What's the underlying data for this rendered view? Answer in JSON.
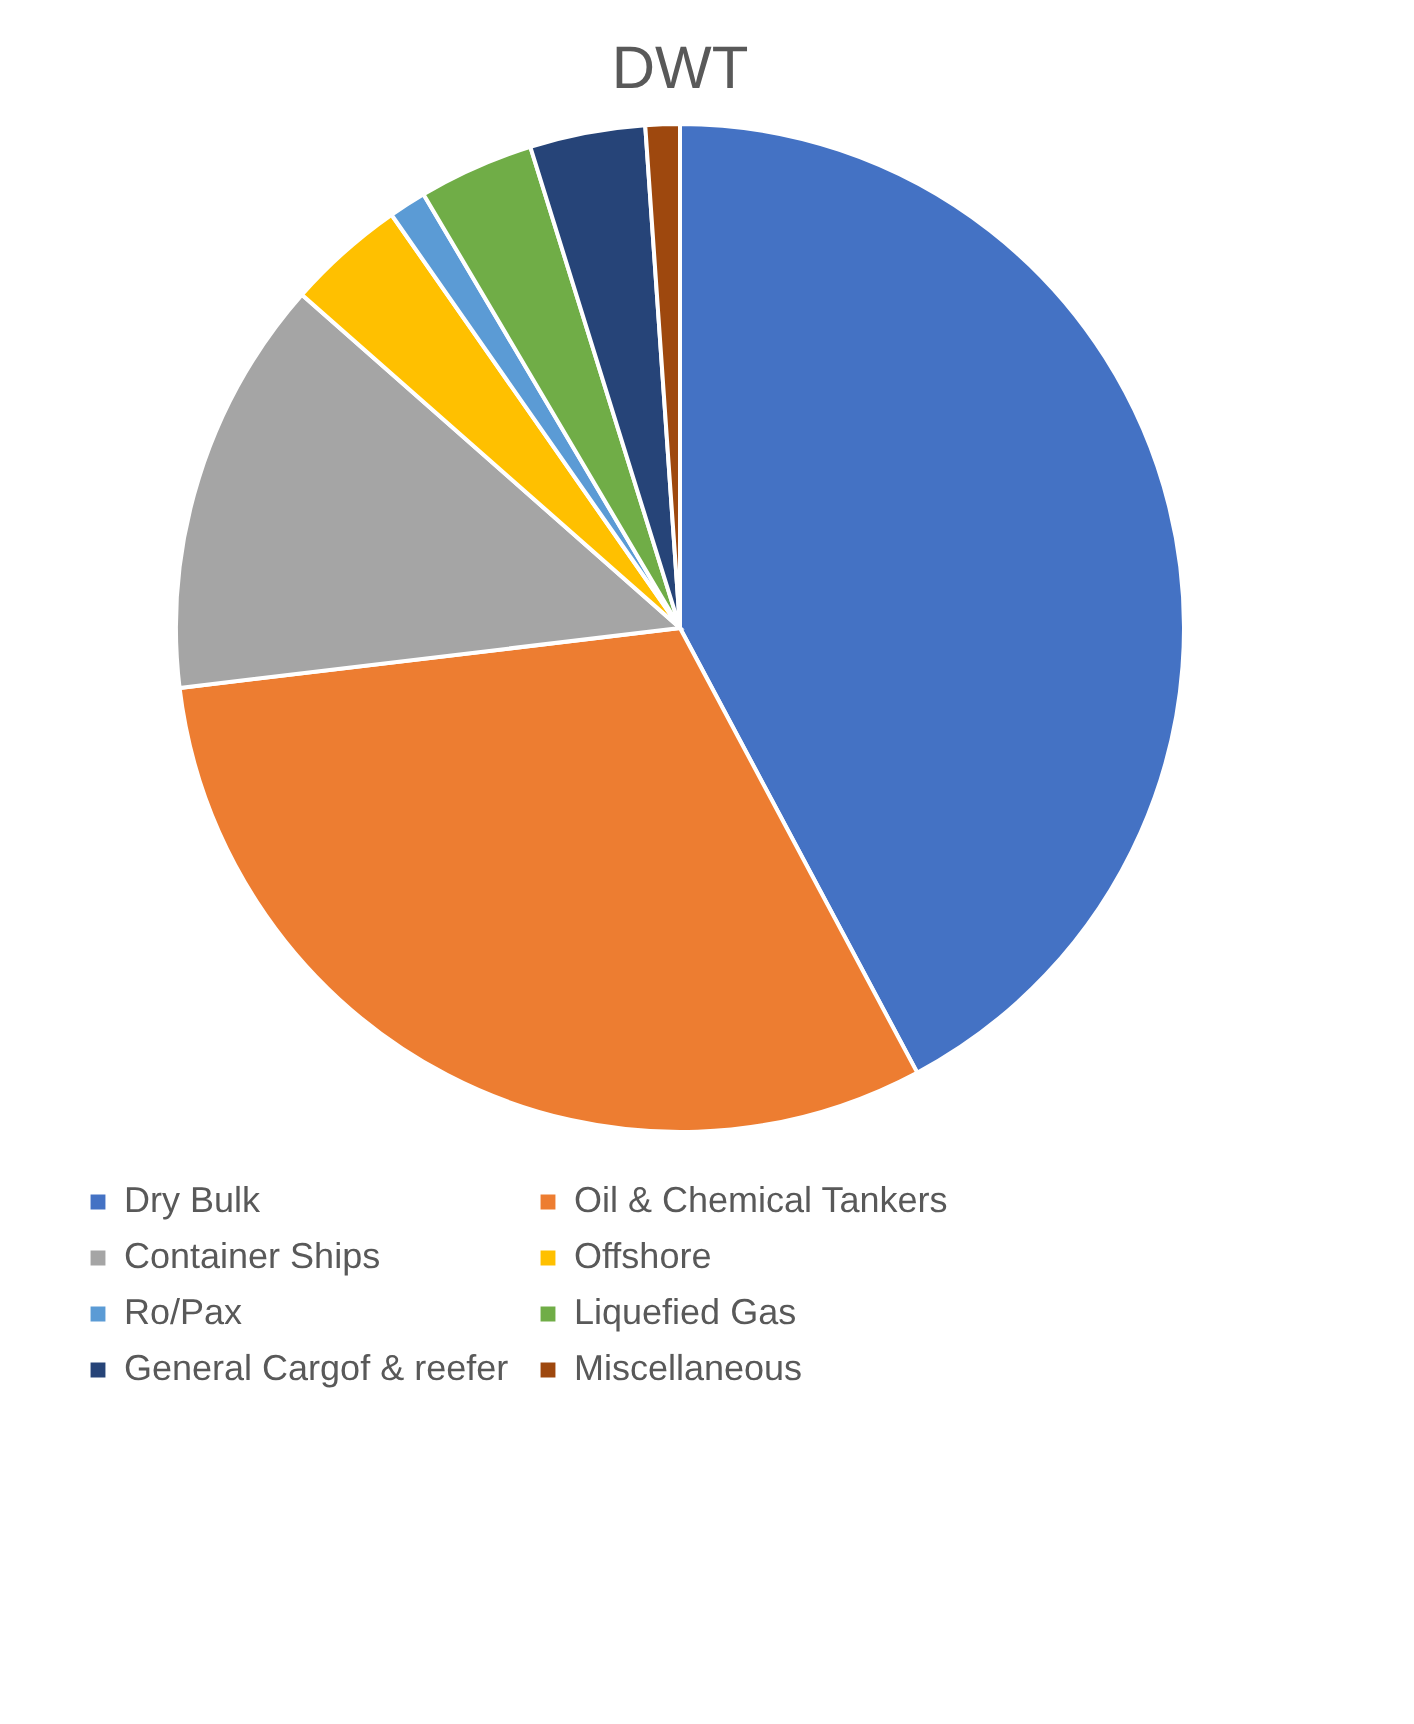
{
  "chart_data": {
    "type": "pie",
    "title": "DWT",
    "categories": [
      "Dry Bulk",
      "Oil & Chemical Tankers",
      "Container Ships",
      "Offshore",
      "Ro/Pax",
      "Liquefied Gas",
      "General Cargof & reefer",
      "Miscellaneous"
    ],
    "values": [
      42.2,
      30.9,
      13.4,
      3.8,
      1.2,
      3.7,
      3.7,
      1.1
    ],
    "colors": [
      "#4472c4",
      "#ed7d31",
      "#a5a5a5",
      "#ffc000",
      "#5b9bd5",
      "#70ad47",
      "#264478",
      "#9e480e"
    ],
    "legend": "bottom"
  }
}
